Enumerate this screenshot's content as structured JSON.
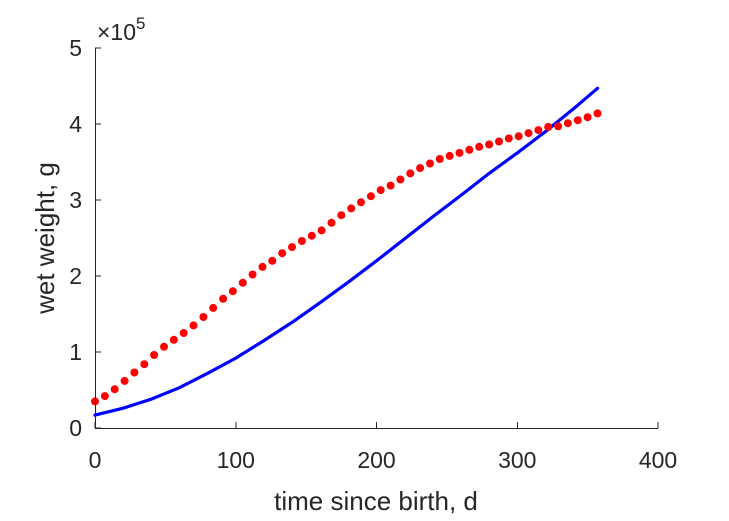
{
  "chart_data": {
    "type": "line",
    "title": "",
    "xlabel": "time since birth, d",
    "ylabel": "wet weight, g",
    "y_exponent_label": "×10",
    "y_exponent_power": "5",
    "y_scale_factor": 100000,
    "xlim": [
      0,
      400
    ],
    "ylim": [
      0,
      500000
    ],
    "x_ticks": [
      0,
      100,
      200,
      300,
      400
    ],
    "x_tick_labels": [
      "0",
      "100",
      "200",
      "300",
      "400"
    ],
    "y_ticks": [
      0,
      100000,
      200000,
      300000,
      400000,
      500000
    ],
    "y_tick_labels": [
      "0",
      "1",
      "2",
      "3",
      "4",
      "5"
    ],
    "grid": false,
    "legend": "none",
    "series": [
      {
        "kind": "line",
        "color": "#0000ff",
        "x": [
          0,
          20,
          40,
          60,
          80,
          100,
          120,
          140,
          160,
          180,
          200,
          220,
          240,
          260,
          280,
          300,
          320,
          340,
          357
        ],
        "y": [
          17000,
          26000,
          38000,
          53000,
          72000,
          92000,
          115000,
          139000,
          165000,
          192000,
          220000,
          249000,
          278000,
          306000,
          335000,
          362000,
          390000,
          420000,
          447000
        ]
      },
      {
        "kind": "scatter",
        "color": "#ff0000",
        "x": [
          0,
          7,
          14,
          21,
          28,
          35,
          42,
          49,
          56,
          63,
          70,
          77,
          84,
          91,
          98,
          105,
          112,
          119,
          126,
          133,
          140,
          147,
          154,
          161,
          168,
          175,
          182,
          189,
          196,
          203,
          210,
          217,
          224,
          231,
          238,
          245,
          252,
          259,
          266,
          273,
          280,
          287,
          294,
          301,
          308,
          315,
          322,
          329,
          336,
          343,
          350,
          357
        ],
        "y": [
          35000,
          42000,
          51000,
          62000,
          73000,
          84000,
          96000,
          107000,
          116000,
          125000,
          135000,
          146000,
          158000,
          170000,
          180000,
          191000,
          202000,
          212000,
          220000,
          230000,
          238000,
          246000,
          253000,
          260000,
          270000,
          280000,
          289000,
          297000,
          305000,
          313000,
          319000,
          327000,
          335000,
          342000,
          348000,
          354000,
          358000,
          362000,
          366000,
          370000,
          373000,
          377000,
          381000,
          384000,
          388000,
          392000,
          396000,
          397000,
          401000,
          405000,
          409000,
          414000
        ]
      }
    ]
  }
}
